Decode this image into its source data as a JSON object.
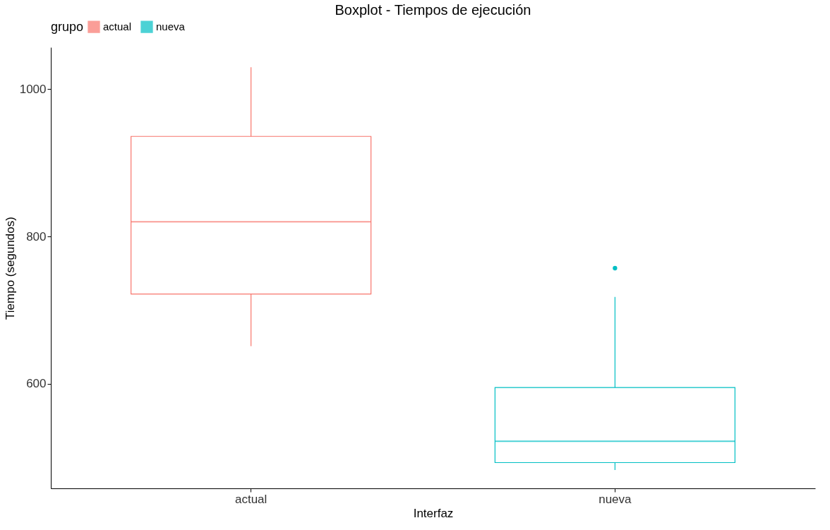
{
  "chart_data": {
    "type": "box",
    "title": "Boxplot - Tiempos de ejecución",
    "xlabel": "Interfaz",
    "ylabel": "Tiempo (segundos)",
    "legend_title": "grupo",
    "legend": "top",
    "categories": [
      "actual",
      "nueva"
    ],
    "series": [
      {
        "name": "actual",
        "color": "#f8766d",
        "x": [
          "actual"
        ],
        "boxes": [
          {
            "low": 651,
            "q1": 722,
            "median": 820,
            "q3": 936,
            "high": 1030
          }
        ]
      },
      {
        "name": "nueva",
        "color": "#00bfc4",
        "x": [
          "nueva"
        ],
        "boxes": [
          {
            "low": 483,
            "q1": 493,
            "median": 522,
            "q3": 595,
            "high": 718,
            "outliers": [
              757
            ]
          }
        ]
      }
    ],
    "ylim": [
      458,
      1057
    ],
    "yticks": [
      600,
      800,
      1000
    ],
    "grid": false
  }
}
